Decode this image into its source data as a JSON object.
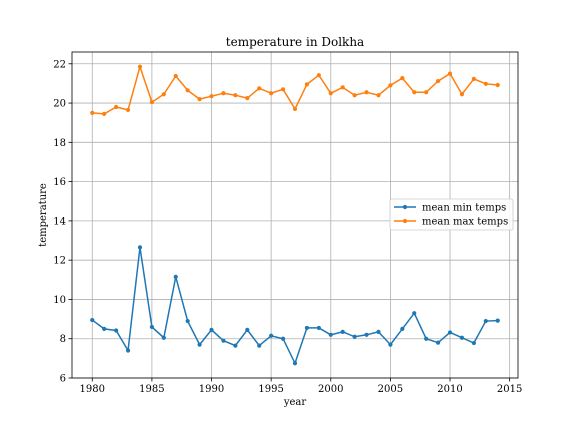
{
  "chart_data": {
    "type": "line",
    "title": "temperature in Dolkha",
    "xlabel": "year",
    "ylabel": "temperature",
    "xlim": [
      1978.3,
      2015.7
    ],
    "ylim": [
      6,
      22.6
    ],
    "x_ticks": [
      1980,
      1985,
      1990,
      1995,
      2000,
      2005,
      2010,
      2015
    ],
    "y_ticks": [
      6,
      8,
      10,
      12,
      14,
      16,
      18,
      20,
      22
    ],
    "grid": true,
    "legend_position": "right",
    "x": [
      1980,
      1981,
      1982,
      1983,
      1984,
      1985,
      1986,
      1987,
      1988,
      1989,
      1990,
      1991,
      1992,
      1993,
      1994,
      1995,
      1996,
      1997,
      1998,
      1999,
      2000,
      2001,
      2002,
      2003,
      2004,
      2005,
      2006,
      2007,
      2008,
      2009,
      2010,
      2011,
      2012,
      2013,
      2014
    ],
    "series": [
      {
        "name": "mean min temps",
        "color": "#1f77b4",
        "values": [
          8.95,
          8.5,
          8.42,
          7.4,
          12.65,
          8.6,
          8.05,
          11.15,
          8.9,
          7.7,
          8.45,
          7.9,
          7.65,
          8.45,
          7.65,
          8.15,
          8.0,
          6.75,
          8.55,
          8.55,
          8.2,
          8.35,
          8.1,
          8.2,
          8.35,
          7.7,
          8.5,
          9.3,
          8.0,
          7.8,
          8.32,
          8.05,
          7.78,
          8.9,
          8.92
        ]
      },
      {
        "name": "mean max temps",
        "color": "#ff7f0e",
        "values": [
          19.5,
          19.45,
          19.8,
          19.65,
          21.85,
          20.05,
          20.45,
          21.38,
          20.65,
          20.2,
          20.35,
          20.5,
          20.4,
          20.25,
          20.75,
          20.5,
          20.7,
          19.7,
          20.95,
          21.42,
          20.5,
          20.8,
          20.4,
          20.55,
          20.4,
          20.9,
          21.27,
          20.55,
          20.55,
          21.12,
          21.5,
          20.45,
          21.23,
          20.98,
          20.92
        ]
      }
    ]
  }
}
